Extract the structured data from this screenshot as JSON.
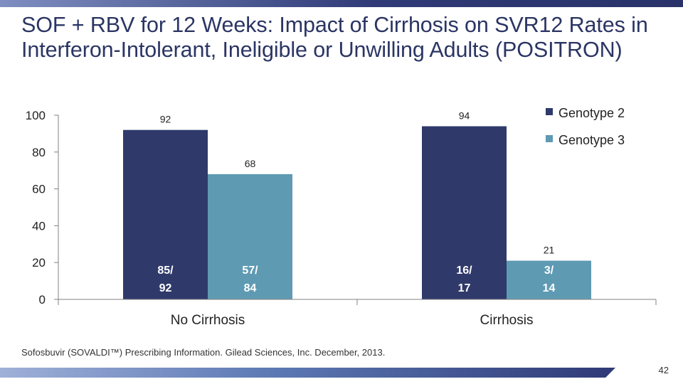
{
  "slide": {
    "title": "SOF + RBV for 12 Weeks: Impact of Cirrhosis on SVR12 Rates in Interferon-Intolerant, Ineligible or Unwilling Adults (POSITRON)",
    "footnote": "Sofosbuvir (SOVALDI™) Prescribing Information. Gilead Sciences, Inc. December, 2013.",
    "page_number": "42"
  },
  "chart_data": {
    "type": "bar",
    "categories": [
      "No Cirrhosis",
      "Cirrhosis"
    ],
    "series": [
      {
        "name": "Genotype 2",
        "color": "#2f3a6b",
        "values": [
          92,
          94
        ],
        "inner_labels": [
          [
            "85/",
            "92"
          ],
          [
            "16/",
            "17"
          ]
        ]
      },
      {
        "name": "Genotype 3",
        "color": "#5f9ab3",
        "values": [
          68,
          21
        ],
        "inner_labels": [
          [
            "57/",
            "84"
          ],
          [
            "3/",
            "14"
          ]
        ]
      }
    ],
    "ylim": [
      0,
      100
    ],
    "yticks": [
      "0",
      "20",
      "40",
      "60",
      "80",
      "100"
    ],
    "legend": "top-right",
    "grid": false
  }
}
